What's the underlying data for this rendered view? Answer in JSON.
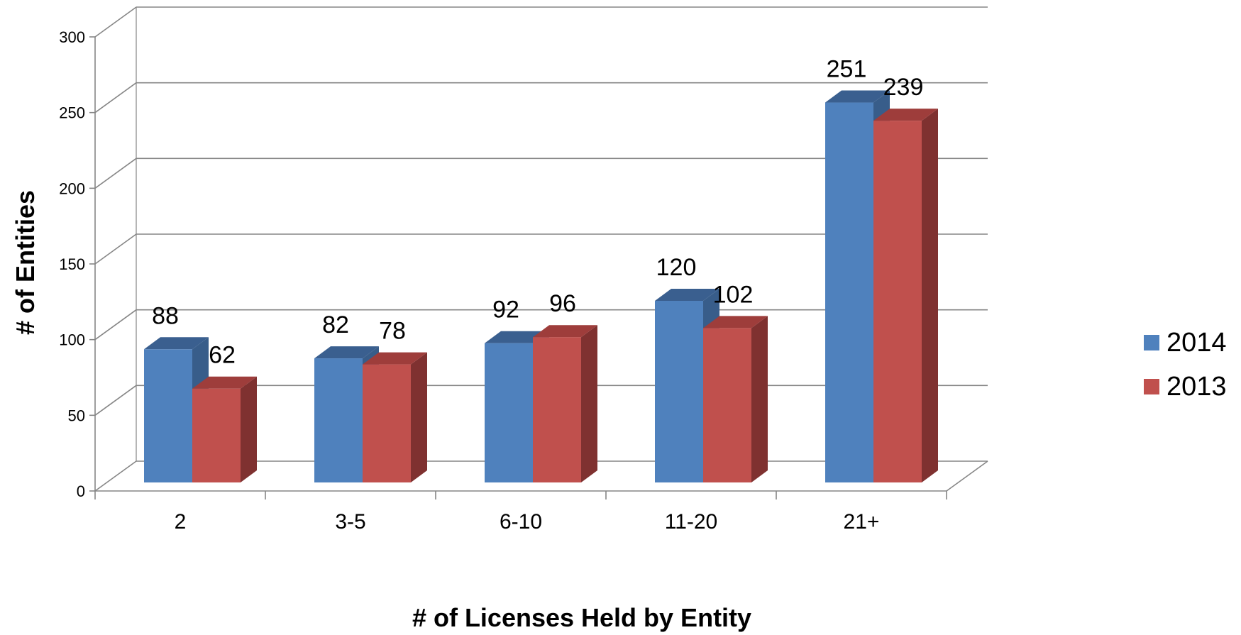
{
  "chart_data": {
    "type": "bar",
    "categories": [
      "2",
      "3-5",
      "6-10",
      "11-20",
      "21+"
    ],
    "series": [
      {
        "name": "2014",
        "values": [
          88,
          82,
          92,
          120,
          251
        ],
        "color": "#4F81BD",
        "side_color": "#385D8A",
        "top_color": "#3A5F8F"
      },
      {
        "name": "2013",
        "values": [
          62,
          78,
          96,
          102,
          239
        ],
        "color": "#C0504D",
        "side_color": "#7F3130",
        "top_color": "#9E3D3B"
      }
    ],
    "xlabel": "# of Licenses Held by Entity",
    "ylabel": "# of Entities",
    "ylim": [
      0,
      300
    ],
    "yticks": [
      0,
      50,
      100,
      150,
      200,
      250,
      300
    ],
    "grid": true,
    "legend_position": "right",
    "three_d": true,
    "colors": {
      "grid": "#868686",
      "axis_text": "#000000"
    }
  }
}
